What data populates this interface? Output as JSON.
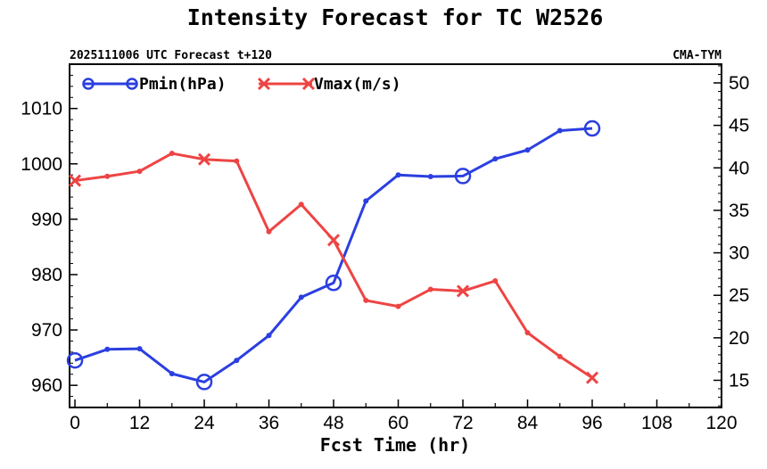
{
  "chart_data": {
    "type": "line",
    "title": "Intensity Forecast for TC W2526",
    "subtitle_left": "2025111006 UTC Forecast t+120",
    "subtitle_right": "CMA-TYM",
    "xlabel": "Fcst Time (hr)",
    "xlim": [
      -1,
      120
    ],
    "xticks": [
      0,
      12,
      24,
      36,
      48,
      60,
      72,
      84,
      96,
      108,
      120
    ],
    "ylim_left": [
      956,
      1018
    ],
    "yticks_left": [
      960,
      970,
      980,
      990,
      1000,
      1010
    ],
    "ylim_right": [
      11.8,
      52.2
    ],
    "yticks_right": [
      15,
      20,
      25,
      30,
      35,
      40,
      45,
      50
    ],
    "series": [
      {
        "name": "Pmin(hPa)",
        "axis": "left",
        "color": "#2b3fe0",
        "marker": "circle",
        "x": [
          0,
          6,
          12,
          18,
          24,
          30,
          36,
          42,
          48,
          54,
          60,
          66,
          72,
          78,
          84,
          90,
          96
        ],
        "values": [
          964.5,
          966.5,
          966.6,
          962.1,
          960.6,
          964.5,
          969.0,
          975.9,
          978.5,
          993.3,
          998.0,
          997.7,
          997.8,
          1000.9,
          1002.5,
          1006.0,
          1006.4
        ],
        "big_marker_x": [
          0,
          24,
          48,
          72,
          96
        ]
      },
      {
        "name": "Vmax(m/s)",
        "axis": "right",
        "color": "#ee4444",
        "marker": "x",
        "x": [
          0,
          6,
          12,
          18,
          24,
          30,
          36,
          42,
          48,
          54,
          60,
          66,
          72,
          78,
          84,
          90,
          96
        ],
        "values": [
          38.5,
          39.0,
          39.6,
          41.7,
          41.0,
          40.8,
          32.5,
          35.7,
          31.5,
          24.4,
          23.7,
          25.7,
          25.5,
          26.7,
          20.6,
          17.8,
          15.3
        ],
        "big_marker_x": [
          0,
          24,
          48,
          72,
          96
        ]
      }
    ]
  }
}
